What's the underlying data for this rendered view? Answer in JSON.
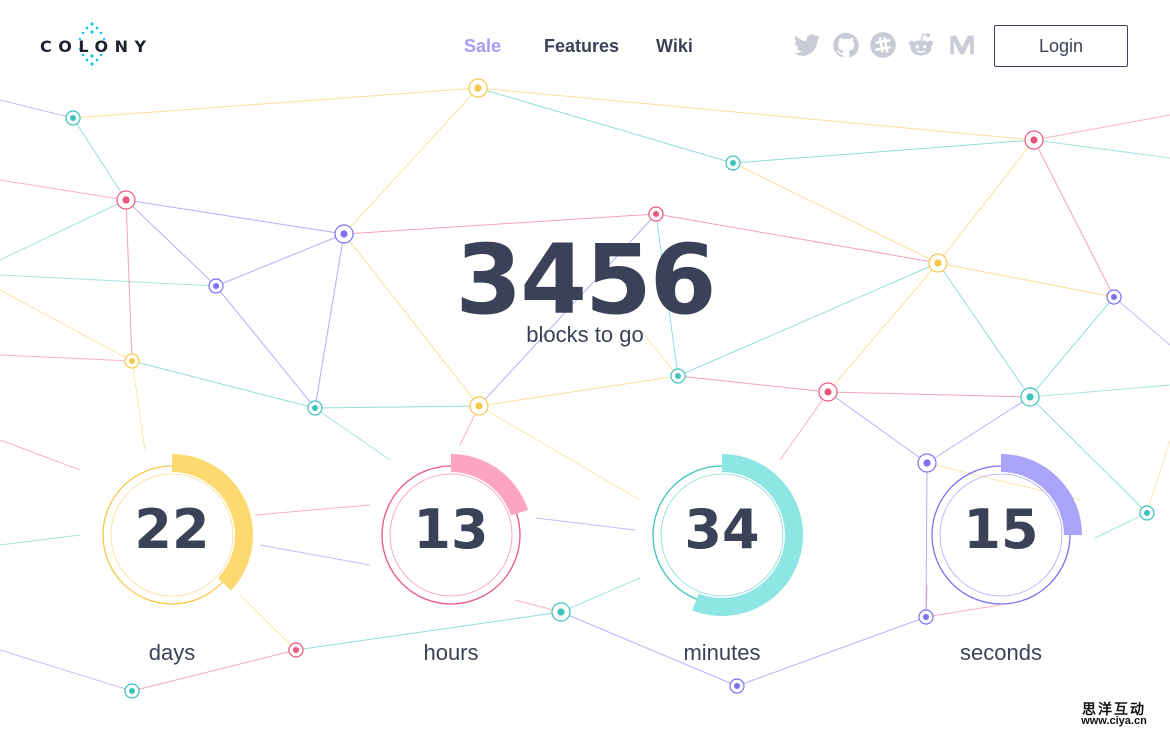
{
  "brand": {
    "logo_text": "COLONY",
    "accent_color": "#1ac6e8"
  },
  "nav": {
    "links": [
      {
        "label": "Sale",
        "active": true
      },
      {
        "label": "Features",
        "active": false
      },
      {
        "label": "Wiki",
        "active": false
      }
    ],
    "active_color": "#a69cf1"
  },
  "social": [
    "twitter-icon",
    "github-icon",
    "slack-icon",
    "reddit-icon",
    "medium-icon"
  ],
  "login": {
    "label": "Login"
  },
  "hero": {
    "number": "3456",
    "label": "blocks to go"
  },
  "countdown": [
    {
      "value": "22",
      "unit": "days",
      "fraction": 0.37,
      "color": "#fdd970",
      "ring_color": "#f5c74a"
    },
    {
      "value": "13",
      "unit": "hours",
      "fraction": 0.2,
      "color": "#fda4c0",
      "ring_color": "#e9577e"
    },
    {
      "value": "34",
      "unit": "minutes",
      "fraction": 0.56,
      "color": "#8ee6e4",
      "ring_color": "#3cc2bd"
    },
    {
      "value": "15",
      "unit": "seconds",
      "fraction": 0.25,
      "color": "#a9a4f7",
      "ring_color": "#7c6ff0"
    }
  ],
  "palette": {
    "yellow": "#f5c74a",
    "pink": "#e9577e",
    "teal": "#3cc2bd",
    "purple": "#7c6ff0",
    "text": "#3b4257"
  },
  "watermark": {
    "title": "思洋互动",
    "url": "www.ciya.cn"
  }
}
